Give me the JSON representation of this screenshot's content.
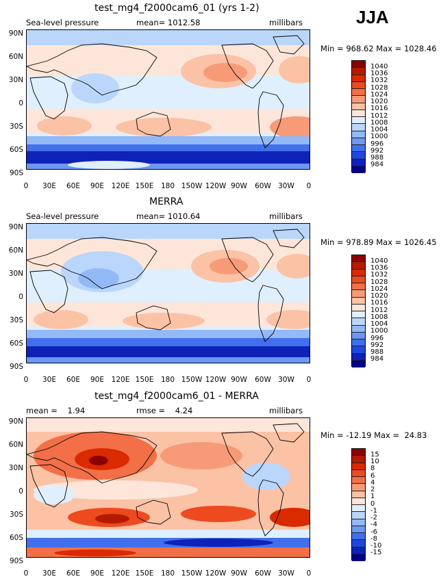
{
  "season": "JJA",
  "lat_labels": [
    "90N",
    "60N",
    "30N",
    "0",
    "30S",
    "60S",
    "90S"
  ],
  "lon_labels": [
    "0",
    "30E",
    "60E",
    "90E",
    "120E",
    "150E",
    "180",
    "150W",
    "120W",
    "90W",
    "60W",
    "30W",
    "0"
  ],
  "panels": [
    {
      "title": "test_mg4_f2000cam6_01 (yrs 1-2)",
      "left_label": "Sea-level pressure",
      "center_label": "mean= 1012.58",
      "right_label": "millibars",
      "minmax": "Min = 968.62 Max = 1028.46",
      "colorbar_labels": [
        "1040",
        "1036",
        "1032",
        "1028",
        "1024",
        "1020",
        "1016",
        "1012",
        "1008",
        "1004",
        "1000",
        "996",
        "992",
        "988",
        "984"
      ],
      "colors": [
        "#8b0000",
        "#b31a00",
        "#d92a00",
        "#ee4a1f",
        "#f26f48",
        "#f79a78",
        "#fbc2a6",
        "#fde6d9",
        "#dfeffd",
        "#bad6fb",
        "#93b9f6",
        "#6c97f2",
        "#4270ec",
        "#1f47e0",
        "#0e22b8",
        "#00008b"
      ]
    },
    {
      "title": "MERRA",
      "left_label": "Sea-level pressure",
      "center_label": "mean= 1010.64",
      "right_label": "millibars",
      "minmax": "Min = 978.89 Max = 1026.45",
      "colorbar_labels": [
        "1040",
        "1036",
        "1032",
        "1028",
        "1024",
        "1020",
        "1016",
        "1012",
        "1008",
        "1004",
        "1000",
        "996",
        "992",
        "988",
        "984"
      ],
      "colors": [
        "#8b0000",
        "#b31a00",
        "#d92a00",
        "#ee4a1f",
        "#f26f48",
        "#f79a78",
        "#fbc2a6",
        "#fde6d9",
        "#dfeffd",
        "#bad6fb",
        "#93b9f6",
        "#6c97f2",
        "#4270ec",
        "#1f47e0",
        "#0e22b8",
        "#00008b"
      ]
    },
    {
      "title": "test_mg4_f2000cam6_01 - MERRA",
      "left_label": "mean =    1.94",
      "center_label": "rmse =    4.24",
      "right_label": "millibars",
      "minmax": "Min = -12.19 Max =  24.83",
      "colorbar_labels": [
        "15",
        "10",
        "8",
        "6",
        "4",
        "2",
        "1",
        "0",
        "-1",
        "-2",
        "-4",
        "-6",
        "-8",
        "-10",
        "-15"
      ],
      "colors": [
        "#8b0000",
        "#b31a00",
        "#d92a00",
        "#ee4a1f",
        "#f26f48",
        "#f79a78",
        "#fbc2a6",
        "#fde6d9",
        "#dfeffd",
        "#bad6fb",
        "#93b9f6",
        "#6c97f2",
        "#4270ec",
        "#1f47e0",
        "#0e22b8",
        "#00008b"
      ]
    }
  ]
}
